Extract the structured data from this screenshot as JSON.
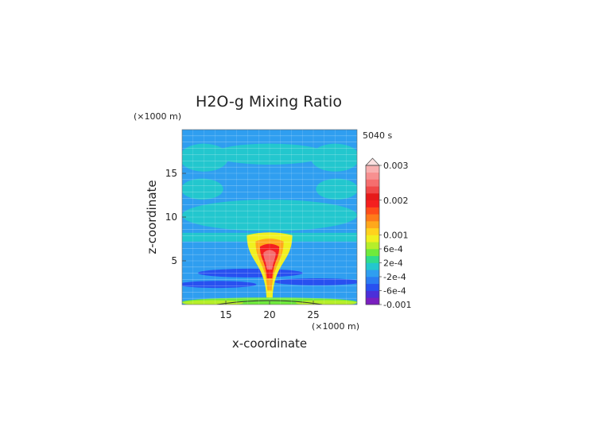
{
  "chart_data": {
    "type": "heatmap",
    "title": "H2O-g Mixing Ratio",
    "time_label": "5040 s",
    "xlabel": "x-coordinate",
    "ylabel": "z-coordinate",
    "x_unit": "(×1000 m)",
    "y_unit": "(×1000 m)",
    "xlim": [
      10,
      30
    ],
    "ylim": [
      0,
      20
    ],
    "x_ticks": [
      15,
      20,
      25
    ],
    "y_ticks": [
      5,
      10,
      15
    ],
    "colorbar": {
      "labels": [
        "0.003",
        "0.002",
        "0.001",
        "6e-4",
        "2e-4",
        "-2e-4",
        "-6e-4",
        "-0.001"
      ],
      "label_values": [
        0.003,
        0.002,
        0.001,
        0.0006,
        0.0002,
        -0.0002,
        -0.0006,
        -0.001
      ],
      "levels": [
        -0.001,
        -0.0008,
        -0.0006,
        -0.0004,
        -0.0002,
        0,
        0.0002,
        0.0004,
        0.0006,
        0.0008,
        0.001,
        0.0012,
        0.0014,
        0.0016,
        0.0018,
        0.002,
        0.0022,
        0.0024,
        0.0026,
        0.0028,
        0.003
      ],
      "colors": [
        "#7a1fbf",
        "#4b2fd9",
        "#2850f0",
        "#2a7cf2",
        "#2f9ef0",
        "#23c7ce",
        "#2fdc8c",
        "#6fea3c",
        "#b6ee2a",
        "#f0f020",
        "#ffd21e",
        "#ffa81c",
        "#ff7a1a",
        "#ff4d1a",
        "#f41f1f",
        "#e61a1a",
        "#f04848",
        "#f56e6e",
        "#f79090",
        "#f8b0b0"
      ]
    },
    "regions": [
      {
        "shape": "rect",
        "x": [
          10,
          30
        ],
        "z": [
          0,
          20
        ],
        "value": -0.0002
      },
      {
        "shape": "rect",
        "x": [
          10,
          30
        ],
        "z": [
          7.2,
          8.2
        ],
        "value": 0.0001
      },
      {
        "shape": "ellipse",
        "cx": 12.5,
        "cz": 16.8,
        "rx": 2.8,
        "rz": 1.6,
        "value": 0.0001
      },
      {
        "shape": "ellipse",
        "cx": 27.5,
        "cz": 16.8,
        "rx": 2.8,
        "rz": 1.6,
        "value": 0.0001
      },
      {
        "shape": "ellipse",
        "cx": 20,
        "cz": 17.2,
        "rx": 6.5,
        "rz": 1.2,
        "value": 0.0001
      },
      {
        "shape": "ellipse",
        "cx": 20,
        "cz": 10.2,
        "rx": 10,
        "rz": 1.8,
        "value": 0.0001
      },
      {
        "shape": "ellipse",
        "cx": 12.3,
        "cz": 13.2,
        "rx": 2.4,
        "rz": 1.2,
        "value": 0.0001
      },
      {
        "shape": "ellipse",
        "cx": 27.7,
        "cz": 13.2,
        "rx": 2.4,
        "rz": 1.2,
        "value": 0.0001
      },
      {
        "shape": "ellipse",
        "cx": 17.8,
        "cz": 3.6,
        "rx": 6,
        "rz": 0.5,
        "value": -0.0006
      },
      {
        "shape": "ellipse",
        "cx": 25.5,
        "cz": 2.6,
        "rx": 5,
        "rz": 0.4,
        "value": -0.0006
      },
      {
        "shape": "ellipse",
        "cx": 14,
        "cz": 2.3,
        "rx": 4.5,
        "rz": 0.4,
        "value": -0.0006
      },
      {
        "shape": "ellipse",
        "cx": 20,
        "cz": 0.3,
        "rx": 10,
        "rz": 0.5,
        "value": 0.0004
      },
      {
        "shape": "ellipse",
        "cx": 13.5,
        "cz": 0.2,
        "rx": 3.5,
        "rz": 0.3,
        "value": 0.0007
      },
      {
        "shape": "ellipse",
        "cx": 26.5,
        "cz": 0.2,
        "rx": 3.5,
        "rz": 0.3,
        "value": 0.0007
      },
      {
        "shape": "plume",
        "base": 0.8,
        "top": 8.2,
        "half_width_base": 0.35,
        "half_width_top": 2.6,
        "value": 0.0008
      },
      {
        "shape": "plume",
        "base": 1.6,
        "top": 7.5,
        "half_width_base": 0.25,
        "half_width_top": 1.6,
        "value": 0.0012
      },
      {
        "shape": "plume",
        "base": 3.0,
        "top": 6.9,
        "half_width_base": 0.3,
        "half_width_top": 1.1,
        "value": 0.0018
      },
      {
        "shape": "plume",
        "base": 4.0,
        "top": 6.2,
        "half_width_base": 0.3,
        "half_width_top": 0.7,
        "value": 0.0024
      }
    ]
  }
}
